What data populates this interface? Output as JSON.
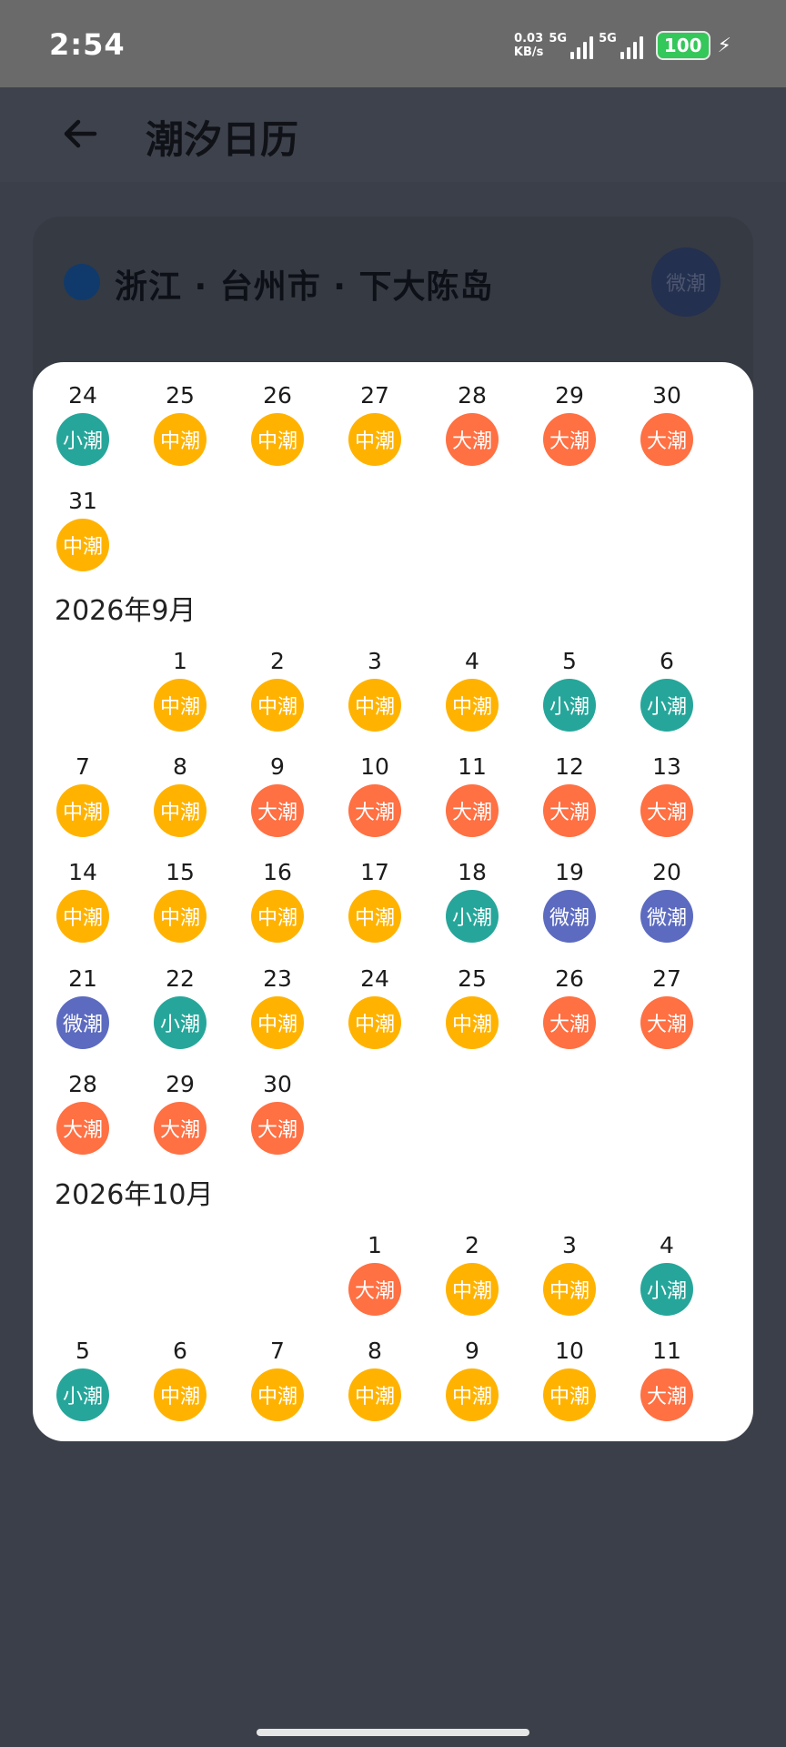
{
  "status_bar": {
    "time": "2:54",
    "net_speed_value": "0.03",
    "net_speed_unit": "KB/s",
    "sim1_label": "5G",
    "sim2_label": "5G",
    "battery": "100"
  },
  "app_bar": {
    "title": "潮汐日历"
  },
  "location": {
    "name": "浙江 · 台州市 · 下大陈岛",
    "tide_label": "微潮"
  },
  "colors": {
    "小潮": "#26a69a",
    "中潮": "#ffb300",
    "大潮": "#ff7043",
    "微潮": "#5c6bc0"
  },
  "calendar": {
    "months": [
      {
        "title": "",
        "rows": [
          [
            {
              "d": "24",
              "t": "小潮"
            },
            {
              "d": "25",
              "t": "中潮"
            },
            {
              "d": "26",
              "t": "中潮"
            },
            {
              "d": "27",
              "t": "中潮"
            },
            {
              "d": "28",
              "t": "大潮"
            },
            {
              "d": "29",
              "t": "大潮"
            },
            {
              "d": "30",
              "t": "大潮"
            }
          ],
          [
            {
              "d": "31",
              "t": "中潮"
            },
            null,
            null,
            null,
            null,
            null,
            null
          ]
        ]
      },
      {
        "title": "2026年9月",
        "rows": [
          [
            null,
            {
              "d": "1",
              "t": "中潮"
            },
            {
              "d": "2",
              "t": "中潮"
            },
            {
              "d": "3",
              "t": "中潮"
            },
            {
              "d": "4",
              "t": "中潮"
            },
            {
              "d": "5",
              "t": "小潮"
            },
            {
              "d": "6",
              "t": "小潮"
            }
          ],
          [
            {
              "d": "7",
              "t": "中潮"
            },
            {
              "d": "8",
              "t": "中潮"
            },
            {
              "d": "9",
              "t": "大潮"
            },
            {
              "d": "10",
              "t": "大潮"
            },
            {
              "d": "11",
              "t": "大潮"
            },
            {
              "d": "12",
              "t": "大潮"
            },
            {
              "d": "13",
              "t": "大潮"
            }
          ],
          [
            {
              "d": "14",
              "t": "中潮"
            },
            {
              "d": "15",
              "t": "中潮"
            },
            {
              "d": "16",
              "t": "中潮"
            },
            {
              "d": "17",
              "t": "中潮"
            },
            {
              "d": "18",
              "t": "小潮"
            },
            {
              "d": "19",
              "t": "微潮"
            },
            {
              "d": "20",
              "t": "微潮"
            }
          ],
          [
            {
              "d": "21",
              "t": "微潮"
            },
            {
              "d": "22",
              "t": "小潮"
            },
            {
              "d": "23",
              "t": "中潮"
            },
            {
              "d": "24",
              "t": "中潮"
            },
            {
              "d": "25",
              "t": "中潮"
            },
            {
              "d": "26",
              "t": "大潮"
            },
            {
              "d": "27",
              "t": "大潮"
            }
          ],
          [
            {
              "d": "28",
              "t": "大潮"
            },
            {
              "d": "29",
              "t": "大潮"
            },
            {
              "d": "30",
              "t": "大潮"
            },
            null,
            null,
            null,
            null
          ]
        ]
      },
      {
        "title": "2026年10月",
        "rows": [
          [
            null,
            null,
            null,
            {
              "d": "1",
              "t": "大潮"
            },
            {
              "d": "2",
              "t": "中潮"
            },
            {
              "d": "3",
              "t": "中潮"
            },
            {
              "d": "4",
              "t": "小潮"
            }
          ],
          [
            {
              "d": "5",
              "t": "小潮"
            },
            {
              "d": "6",
              "t": "中潮"
            },
            {
              "d": "7",
              "t": "中潮"
            },
            {
              "d": "8",
              "t": "中潮"
            },
            {
              "d": "9",
              "t": "中潮"
            },
            {
              "d": "10",
              "t": "中潮"
            },
            {
              "d": "11",
              "t": "大潮"
            }
          ]
        ]
      }
    ]
  }
}
